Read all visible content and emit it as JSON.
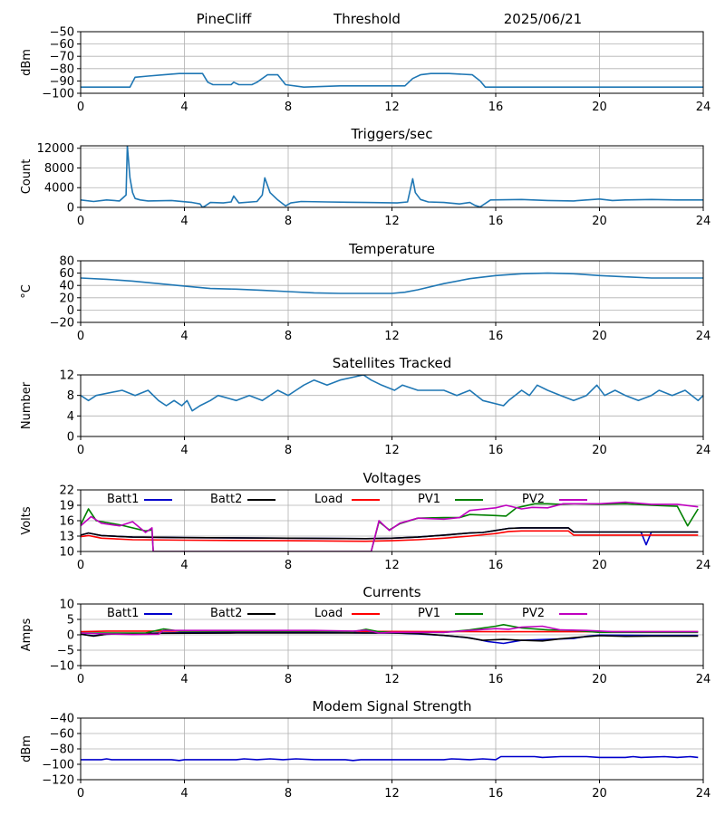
{
  "header": {
    "station": "PineCliff",
    "mode": "Threshold",
    "date": "2025/06/21"
  },
  "colors": {
    "series": "#1f77b4",
    "grid": "#b0b0b0",
    "batt1": "#0000cc",
    "batt2": "#000000",
    "load": "#ff0000",
    "pv1": "#008000",
    "pv2": "#bf00bf",
    "modem": "#0000cc"
  },
  "x_axis": {
    "range": [
      0,
      24
    ],
    "ticks": [
      0,
      4,
      8,
      12,
      16,
      20,
      24
    ]
  },
  "chart_data": [
    {
      "id": "noise",
      "type": "line",
      "title": "",
      "ylabel": "dBm",
      "ylim": [
        -100,
        -50
      ],
      "yticks": [
        -100,
        -90,
        -80,
        -70,
        -60,
        -50
      ],
      "grid": true,
      "series": [
        {
          "color": "#1f77b4",
          "x": [
            0,
            1.9,
            2.1,
            2.6,
            3.2,
            3.8,
            4.7,
            4.9,
            5.1,
            5.8,
            5.9,
            6.1,
            6.6,
            6.8,
            7.2,
            7.6,
            7.9,
            8.6,
            10,
            11.5,
            12.5,
            12.8,
            13.1,
            13.5,
            14.2,
            15.1,
            15.4,
            15.6,
            18,
            21,
            24
          ],
          "y": [
            -95,
            -95,
            -87,
            -86,
            -85,
            -84,
            -84,
            -91,
            -93,
            -93,
            -91,
            -93,
            -93,
            -91,
            -85,
            -85,
            -93,
            -95,
            -94,
            -94,
            -94,
            -88,
            -85,
            -84,
            -84,
            -85,
            -90,
            -95,
            -95,
            -95,
            -95
          ]
        }
      ]
    },
    {
      "id": "triggers",
      "type": "line",
      "title": "Triggers/sec",
      "ylabel": "Count",
      "ylim": [
        0,
        12500
      ],
      "yticks": [
        0,
        4000,
        8000,
        12000
      ],
      "grid": true,
      "series": [
        {
          "color": "#1f77b4",
          "x": [
            0,
            0.5,
            1.0,
            1.5,
            1.75,
            1.8,
            1.9,
            2.0,
            2.1,
            2.3,
            2.6,
            3.5,
            4.3,
            4.6,
            4.7,
            4.8,
            5.0,
            5.5,
            5.8,
            5.9,
            6.1,
            6.8,
            7.0,
            7.1,
            7.3,
            7.6,
            7.9,
            8.1,
            8.5,
            9.5,
            11,
            12.2,
            12.6,
            12.8,
            12.9,
            13.1,
            13.4,
            14,
            14.6,
            15.0,
            15.2,
            15.4,
            15.8,
            17,
            18,
            19,
            19.5,
            20,
            20.5,
            21,
            22,
            23,
            24
          ],
          "y": [
            1500,
            1200,
            1500,
            1300,
            2500,
            12500,
            6000,
            3000,
            1800,
            1500,
            1300,
            1400,
            1000,
            700,
            0,
            300,
            1000,
            900,
            1100,
            2300,
            900,
            1200,
            2500,
            6000,
            3000,
            1500,
            300,
            900,
            1200,
            1100,
            1000,
            900,
            1100,
            5800,
            3000,
            1600,
            1100,
            1000,
            700,
            1000,
            400,
            100,
            1500,
            1600,
            1400,
            1300,
            1500,
            1700,
            1400,
            1500,
            1600,
            1500,
            1500
          ]
        }
      ]
    },
    {
      "id": "temperature",
      "type": "line",
      "title": "Temperature",
      "ylabel": "°C",
      "ylim": [
        -20,
        80
      ],
      "yticks": [
        -20,
        0,
        20,
        40,
        60,
        80
      ],
      "grid": true,
      "series": [
        {
          "color": "#1f77b4",
          "x": [
            0,
            1,
            2,
            3,
            4,
            5,
            6,
            7,
            8,
            9,
            10,
            11,
            12,
            12.5,
            13,
            14,
            15,
            16,
            17,
            18,
            19,
            20,
            21,
            22,
            23,
            24
          ],
          "y": [
            52,
            50,
            47,
            43,
            39,
            35,
            34,
            32,
            30,
            28,
            27,
            27,
            27,
            29,
            33,
            43,
            51,
            56,
            59,
            60,
            59,
            56,
            54,
            52,
            52,
            52
          ]
        }
      ]
    },
    {
      "id": "satellites",
      "type": "line",
      "title": "Satellites Tracked",
      "ylabel": "Number",
      "ylim": [
        0,
        12
      ],
      "yticks": [
        0,
        4,
        8,
        12
      ],
      "grid": true,
      "series": [
        {
          "color": "#1f77b4",
          "x": [
            0,
            0.3,
            0.6,
            1.6,
            2.1,
            2.6,
            3.0,
            3.3,
            3.6,
            3.9,
            4.1,
            4.3,
            4.6,
            5.0,
            5.3,
            6.0,
            6.5,
            7.0,
            7.6,
            8.0,
            8.3,
            8.6,
            9.0,
            9.5,
            10.0,
            10.9,
            11.2,
            11.6,
            12.1,
            12.4,
            13.0,
            14.0,
            14.5,
            15.0,
            15.5,
            16.3,
            16.5,
            17.0,
            17.3,
            17.6,
            18.0,
            18.5,
            19.0,
            19.5,
            19.9,
            20.2,
            20.6,
            21.0,
            21.5,
            22.0,
            22.3,
            22.8,
            23.3,
            23.8,
            24
          ],
          "y": [
            8,
            7,
            8,
            9,
            8,
            9,
            7,
            6,
            7,
            6,
            7,
            5,
            6,
            7,
            8,
            7,
            8,
            7,
            9,
            8,
            9,
            10,
            11,
            10,
            11,
            12,
            11,
            10,
            9,
            10,
            9,
            9,
            8,
            9,
            7,
            6,
            7,
            9,
            8,
            10,
            9,
            8,
            7,
            8,
            10,
            8,
            9,
            8,
            7,
            8,
            9,
            8,
            9,
            7,
            8
          ]
        }
      ]
    },
    {
      "id": "voltages",
      "type": "line",
      "title": "Voltages",
      "ylabel": "Volts",
      "ylim": [
        10,
        22
      ],
      "yticks": [
        10,
        13,
        16,
        19,
        22
      ],
      "grid": true,
      "legend": "top",
      "series": [
        {
          "name": "Batt1",
          "color": "#0000cc",
          "x": [
            0,
            0.3,
            0.8,
            2,
            4,
            8,
            11,
            12,
            13,
            14,
            15,
            15.5,
            16,
            16.5,
            17,
            18,
            18.8,
            19,
            20,
            21,
            21.6,
            21.8,
            22,
            23,
            23.8
          ],
          "y": [
            13.2,
            13.6,
            13.1,
            12.8,
            12.7,
            12.6,
            12.5,
            12.6,
            12.8,
            13.2,
            13.6,
            13.7,
            14.1,
            14.5,
            14.6,
            14.6,
            14.6,
            13.8,
            13.8,
            13.8,
            13.8,
            11.3,
            13.8,
            13.8,
            13.8
          ]
        },
        {
          "name": "Batt2",
          "color": "#000000",
          "x": [
            0,
            0.3,
            0.8,
            2,
            4,
            8,
            11,
            12,
            13,
            14,
            15,
            15.5,
            16,
            16.5,
            17,
            18,
            18.8,
            19,
            20,
            21,
            22,
            23,
            23.8
          ],
          "y": [
            13.2,
            13.6,
            13.1,
            12.8,
            12.7,
            12.6,
            12.5,
            12.6,
            12.8,
            13.2,
            13.6,
            13.7,
            14.1,
            14.5,
            14.6,
            14.6,
            14.6,
            13.8,
            13.8,
            13.8,
            13.8,
            13.8,
            13.8
          ]
        },
        {
          "name": "Load",
          "color": "#ff0000",
          "x": [
            0,
            0.3,
            0.8,
            2,
            4,
            8,
            11,
            12,
            13,
            14,
            15,
            16,
            16.5,
            17,
            18,
            18.8,
            19,
            20,
            22,
            23.8
          ],
          "y": [
            12.9,
            13.1,
            12.6,
            12.3,
            12.2,
            12.1,
            12.0,
            12.1,
            12.3,
            12.6,
            13.0,
            13.5,
            13.9,
            14.0,
            14.0,
            14.0,
            13.2,
            13.2,
            13.2,
            13.2
          ]
        },
        {
          "name": "PV1",
          "color": "#008000",
          "x": [
            0,
            0.3,
            0.6,
            1.5,
            2.5,
            2.75,
            2.8,
            11.2,
            11.5,
            11.9,
            12.3,
            13,
            14,
            14.6,
            15,
            16,
            16.4,
            16.8,
            17.5,
            18,
            18.5,
            19,
            20,
            21,
            22,
            23,
            23.4,
            23.8
          ],
          "y": [
            15.2,
            18.3,
            16.0,
            15.2,
            14.0,
            14.2,
            10,
            10,
            15.8,
            14.2,
            15.4,
            16.5,
            16.6,
            16.6,
            17.2,
            17.0,
            16.9,
            18.5,
            19.3,
            19.3,
            19.2,
            19.3,
            19.2,
            19.3,
            19.0,
            18.8,
            15.0,
            18.3
          ]
        },
        {
          "name": "PV2",
          "color": "#bf00bf",
          "x": [
            0,
            0.4,
            0.8,
            1.5,
            2,
            2.5,
            2.75,
            2.8,
            11.2,
            11.5,
            11.9,
            12.3,
            13,
            14,
            14.6,
            15,
            16,
            16.4,
            17,
            17.4,
            18,
            18.6,
            19,
            20,
            21,
            22,
            23,
            23.8
          ],
          "y": [
            15.0,
            16.8,
            15.5,
            15.0,
            15.8,
            13.7,
            14.6,
            10,
            10,
            16.0,
            14.1,
            15.5,
            16.5,
            16.3,
            16.6,
            18.0,
            18.5,
            19.0,
            18.3,
            18.6,
            18.5,
            19.3,
            19.3,
            19.3,
            19.6,
            19.2,
            19.2,
            18.7
          ]
        }
      ]
    },
    {
      "id": "currents",
      "type": "line",
      "title": "Currents",
      "ylabel": "Amps",
      "ylim": [
        -10,
        10
      ],
      "yticks": [
        -10,
        -5,
        0,
        5,
        10
      ],
      "grid": true,
      "legend": "top",
      "series": [
        {
          "name": "Batt1",
          "color": "#0000cc",
          "x": [
            0,
            0.5,
            1,
            3,
            6,
            9,
            10,
            11,
            12,
            13,
            14,
            15,
            15.7,
            16.3,
            17,
            18,
            19,
            19.5,
            20,
            22,
            23.8
          ],
          "y": [
            0.2,
            -0.3,
            0.2,
            0.6,
            0.8,
            0.8,
            0.7,
            0.6,
            0.6,
            0.3,
            -0.2,
            -1.0,
            -2.2,
            -2.8,
            -1.8,
            -1.5,
            -1.2,
            -0.5,
            -0.1,
            -0.2,
            -0.2
          ]
        },
        {
          "name": "Batt2",
          "color": "#000000",
          "x": [
            0,
            0.5,
            1,
            3,
            6,
            9,
            11,
            12,
            13,
            14,
            14.8,
            15.5,
            16.3,
            17,
            17.8,
            18.5,
            19.2,
            20,
            21,
            22,
            23.8
          ],
          "y": [
            0.2,
            -0.4,
            0.2,
            0.5,
            0.6,
            0.6,
            0.6,
            0.6,
            0.4,
            -0.2,
            -0.8,
            -1.8,
            -1.5,
            -1.8,
            -2.0,
            -1.3,
            -0.8,
            -0.3,
            -0.5,
            -0.4,
            -0.4
          ]
        },
        {
          "name": "Load",
          "color": "#ff0000",
          "x": [
            0,
            1,
            4,
            8,
            12,
            16,
            20,
            23.8
          ],
          "y": [
            1.0,
            1.2,
            1.2,
            1.2,
            1.1,
            1.0,
            1.0,
            1.0
          ]
        },
        {
          "name": "PV1",
          "color": "#008000",
          "x": [
            0,
            2.5,
            3.2,
            3.8,
            6,
            9,
            10.5,
            11,
            11.5,
            12,
            13,
            14,
            15,
            16,
            16.3,
            17,
            18,
            19,
            20,
            23.8
          ],
          "y": [
            0.6,
            0.6,
            1.9,
            1.2,
            1.2,
            1.2,
            1.0,
            1.8,
            1.0,
            0.8,
            0.8,
            0.8,
            1.6,
            2.8,
            3.3,
            2.2,
            1.6,
            1.4,
            0.8,
            0.8
          ]
        },
        {
          "name": "PV2",
          "color": "#bf00bf",
          "x": [
            0,
            1,
            2,
            3,
            3.2,
            4,
            6,
            9,
            10.5,
            11,
            11.5,
            12,
            13,
            14,
            15,
            16,
            16.5,
            17,
            17.8,
            18.5,
            19.5,
            20.5,
            23.8
          ],
          "y": [
            0.6,
            0.3,
            0.1,
            0.2,
            1.4,
            1.4,
            1.4,
            1.4,
            1.2,
            1.5,
            0.6,
            0.8,
            0.8,
            0.8,
            1.4,
            2.0,
            1.8,
            2.5,
            2.8,
            1.6,
            1.4,
            1.0,
            1.0
          ]
        }
      ]
    },
    {
      "id": "modem",
      "type": "line",
      "title": "Modem Signal Strength",
      "ylabel": "dBm",
      "ylim": [
        -120,
        -40
      ],
      "yticks": [
        -120,
        -100,
        -80,
        -60,
        -40
      ],
      "grid": true,
      "series": [
        {
          "color": "#0000cc",
          "x": [
            0,
            0.8,
            1.0,
            1.2,
            3.5,
            3.8,
            4.0,
            6.0,
            6.3,
            6.8,
            7.3,
            7.8,
            8.3,
            9.0,
            10.2,
            10.5,
            10.8,
            12,
            14,
            14.3,
            15,
            15.5,
            16.0,
            16.2,
            16.5,
            17.5,
            17.8,
            18.5,
            19.5,
            20,
            21,
            21.3,
            21.6,
            22.5,
            23,
            23.5,
            23.8
          ],
          "y": [
            -94,
            -94,
            -93,
            -94,
            -94,
            -95,
            -94,
            -94,
            -93,
            -94,
            -93,
            -94,
            -93,
            -94,
            -94,
            -95,
            -94,
            -94,
            -94,
            -93,
            -94,
            -93,
            -94,
            -90,
            -90,
            -90,
            -91,
            -90,
            -90,
            -91,
            -91,
            -90,
            -91,
            -90,
            -91,
            -90,
            -91
          ]
        }
      ]
    }
  ]
}
